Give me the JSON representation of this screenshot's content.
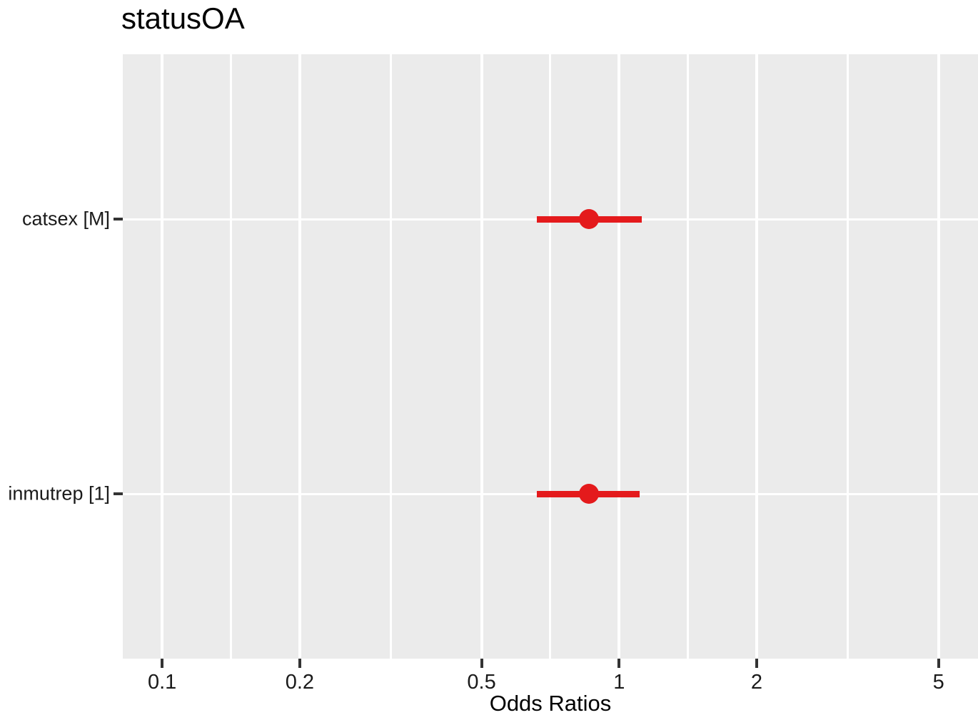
{
  "chart_data": {
    "type": "scatter",
    "subtype": "forest-plot-dot-whisker",
    "title": "statusOA",
    "xlabel": "Odds Ratios",
    "ylabel": "",
    "x_scale": "log10",
    "x_range": [
      0.082,
      6.1
    ],
    "x_major_ticks": [
      0.1,
      0.2,
      0.5,
      1,
      2,
      5
    ],
    "x_major_tick_labels": [
      "0.1",
      "0.2",
      "0.5",
      "1",
      "2",
      "5"
    ],
    "x_minor_gridlines": [
      0.1414,
      0.3162,
      0.7071,
      1.4142,
      3.1623
    ],
    "grid": "on",
    "legend": "none",
    "points": [
      {
        "label": "catsex [M]",
        "estimate": 0.86,
        "ci_low": 0.66,
        "ci_high": 1.12
      },
      {
        "label": "inmutrep [1]",
        "estimate": 0.86,
        "ci_low": 0.66,
        "ci_high": 1.11
      }
    ],
    "colors": {
      "point": "#e41a1c",
      "errorbar": "#e41a1c",
      "panel_background": "#ebebeb",
      "gridline": "#ffffff",
      "tick_mark": "#333333",
      "axis_text": "#1a1a1a",
      "title_text": "#000000"
    }
  }
}
